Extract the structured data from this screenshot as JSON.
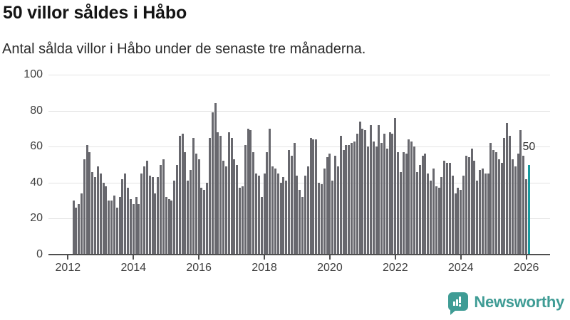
{
  "header": {
    "title": "50 villor såldes i Håbo",
    "subtitle": "Antal sålda villor i Håbo under de senaste tre månaderna."
  },
  "chart_data": {
    "type": "bar",
    "title": "50 villor såldes i Håbo",
    "subtitle": "Antal sålda villor i Håbo under de senaste tre månaderna.",
    "xlabel": "",
    "ylabel": "",
    "interval": "monthly",
    "x_start": "2012-03",
    "x_end": "2026-02",
    "ylim": [
      0,
      100
    ],
    "y_ticks": [
      0,
      20,
      40,
      60,
      80,
      100
    ],
    "x_tick_labels": [
      "2012",
      "2014",
      "2016",
      "2018",
      "2020",
      "2022",
      "2024",
      "2026"
    ],
    "grid": "horizontal",
    "bar_color": "#68686e",
    "highlight_color": "#189a9f",
    "highlight_last_bar": true,
    "annotation": {
      "text": "50",
      "target": "last-bar"
    },
    "values": [
      30,
      26,
      28,
      34,
      53,
      61,
      57,
      46,
      43,
      49,
      45,
      40,
      38,
      30,
      30,
      33,
      26,
      32,
      42,
      45,
      37,
      31,
      28,
      32,
      28,
      45,
      49,
      52,
      44,
      43,
      34,
      43,
      50,
      53,
      32,
      31,
      30,
      41,
      50,
      66,
      67,
      57,
      41,
      47,
      65,
      56,
      53,
      37,
      36,
      40,
      65,
      79,
      84,
      68,
      66,
      52,
      49,
      68,
      65,
      53,
      50,
      37,
      38,
      61,
      70,
      69,
      57,
      45,
      44,
      32,
      45,
      57,
      70,
      49,
      48,
      45,
      40,
      43,
      41,
      58,
      55,
      62,
      44,
      36,
      32,
      44,
      49,
      65,
      64,
      64,
      40,
      39,
      48,
      54,
      56,
      41,
      55,
      49,
      66,
      58,
      61,
      61,
      62,
      63,
      67,
      74,
      70,
      69,
      60,
      72,
      63,
      60,
      72,
      62,
      67,
      59,
      68,
      67,
      76,
      57,
      46,
      57,
      56,
      64,
      63,
      60,
      46,
      50,
      55,
      56,
      45,
      41,
      48,
      38,
      37,
      43,
      52,
      51,
      51,
      44,
      34,
      37,
      36,
      44,
      55,
      54,
      59,
      52,
      41,
      47,
      48,
      45,
      45,
      62,
      58,
      57,
      53,
      51,
      65,
      73,
      66,
      53,
      49,
      56,
      69,
      55,
      42,
      50
    ]
  },
  "footer": {
    "brand": "Newsworthy"
  }
}
